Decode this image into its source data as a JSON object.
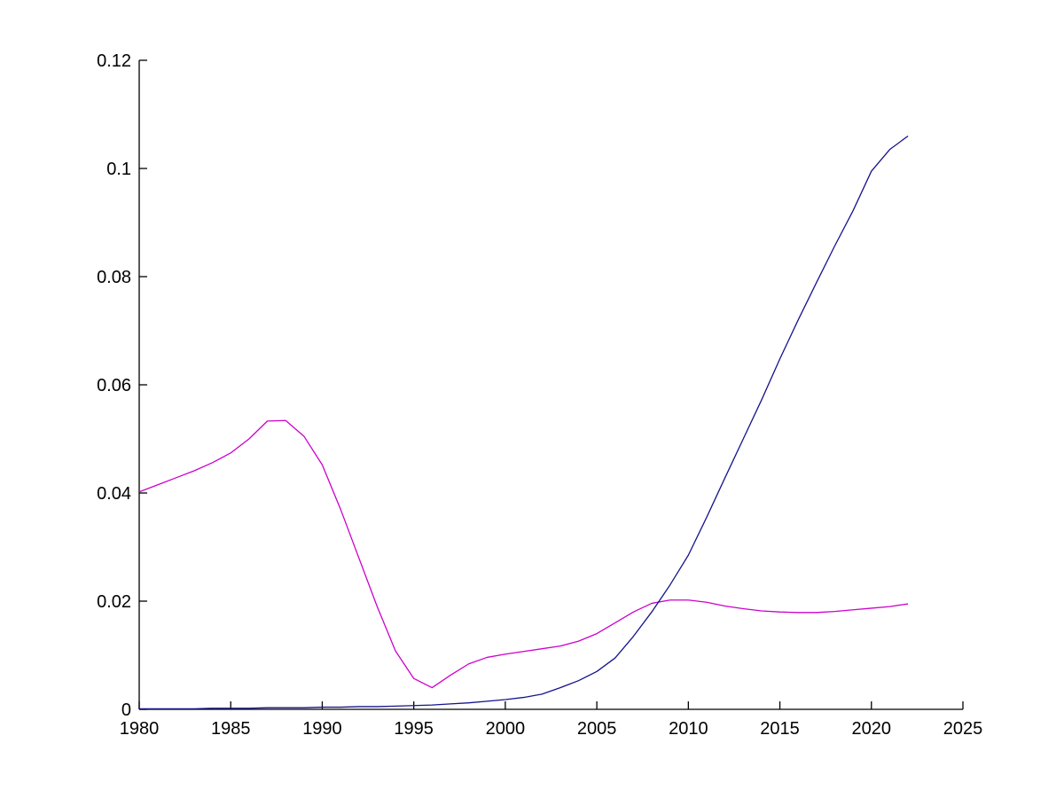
{
  "figure": {
    "background": "#ffffff",
    "title": "",
    "legend": "none"
  },
  "chart_data": {
    "type": "line",
    "title": "",
    "xlabel": "",
    "ylabel": "",
    "xlim": [
      1980,
      2025
    ],
    "ylim": [
      0,
      0.12
    ],
    "grid": "off",
    "box": "off",
    "axis_color": "#000000",
    "tick_direction": "in",
    "x_ticks": {
      "values": [
        1980,
        1985,
        1990,
        1995,
        2000,
        2005,
        2010,
        2015,
        2020,
        2025
      ],
      "labels": [
        "1980",
        "1985",
        "1990",
        "1995",
        "2000",
        "2005",
        "2010",
        "2015",
        "2020",
        "2025"
      ]
    },
    "y_ticks": {
      "values": [
        0,
        0.02,
        0.04,
        0.06,
        0.08,
        0.1,
        0.12
      ],
      "labels": [
        "0",
        "0.02",
        "0.04",
        "0.06",
        "0.08",
        "0.1",
        "0.12"
      ]
    },
    "x": [
      1980,
      1981,
      1982,
      1983,
      1984,
      1985,
      1986,
      1987,
      1988,
      1989,
      1990,
      1991,
      1992,
      1993,
      1994,
      1995,
      1996,
      1997,
      1998,
      1999,
      2000,
      2001,
      2002,
      2003,
      2004,
      2005,
      2006,
      2007,
      2008,
      2009,
      2010,
      2011,
      2012,
      2013,
      2014,
      2015,
      2016,
      2017,
      2018,
      2019,
      2020,
      2021,
      2022
    ],
    "series": [
      {
        "name": "magenta-series",
        "color": "#cc00cc",
        "values": [
          0.0402,
          0.0415,
          0.0428,
          0.0441,
          0.0456,
          0.0474,
          0.05,
          0.0533,
          0.0534,
          0.0505,
          0.0452,
          0.037,
          0.028,
          0.019,
          0.0108,
          0.0057,
          0.004,
          0.0063,
          0.0084,
          0.0096,
          0.0102,
          0.0107,
          0.0112,
          0.0117,
          0.0126,
          0.014,
          0.016,
          0.018,
          0.0196,
          0.0202,
          0.0202,
          0.0198,
          0.0191,
          0.0186,
          0.0182,
          0.018,
          0.0179,
          0.0179,
          0.0181,
          0.0184,
          0.0187,
          0.019,
          0.0195
        ]
      },
      {
        "name": "blue-series",
        "color": "#14148c",
        "values": [
          0.0001,
          0.0001,
          0.0001,
          0.0001,
          0.0002,
          0.0002,
          0.0002,
          0.0003,
          0.0003,
          0.0003,
          0.0004,
          0.0004,
          0.0005,
          0.0005,
          0.0006,
          0.0007,
          0.0008,
          0.001,
          0.0012,
          0.0015,
          0.0018,
          0.0022,
          0.0028,
          0.004,
          0.0053,
          0.007,
          0.0095,
          0.0135,
          0.018,
          0.023,
          0.0285,
          0.0355,
          0.0428,
          0.05,
          0.0572,
          0.0648,
          0.072,
          0.0789,
          0.0857,
          0.0922,
          0.0995,
          0.1035,
          0.106
        ]
      }
    ]
  }
}
